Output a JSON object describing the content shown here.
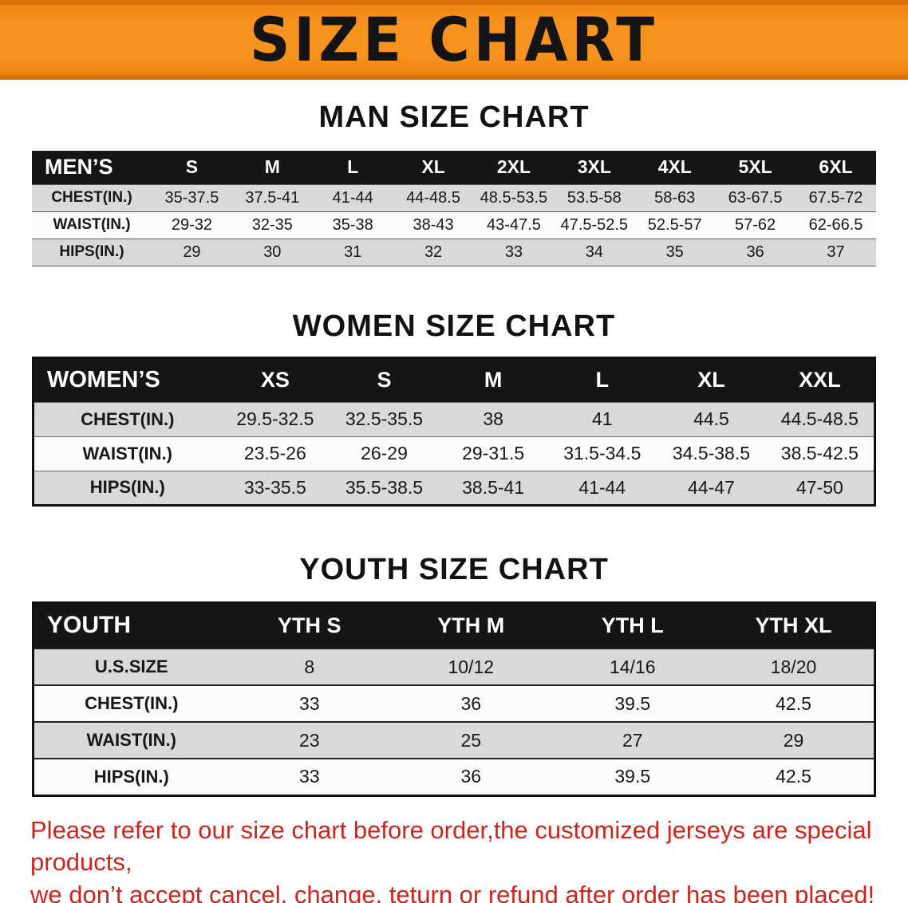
{
  "banner": {
    "title": "SIZE CHART"
  },
  "colors": {
    "banner_orange": "#f6921e",
    "header_black": "#151515",
    "row_gray": "#d9d9d9",
    "row_white": "#fbfbfb",
    "footer_red": "#cf231c"
  },
  "sections": [
    {
      "id": "men",
      "heading": "MAN SIZE CHART",
      "header_label": "MEN’S",
      "columns": [
        "S",
        "M",
        "L",
        "XL",
        "2XL",
        "3XL",
        "4XL",
        "5XL",
        "6XL"
      ],
      "rows": [
        {
          "label": "CHEST(IN.)",
          "values": [
            "35-37.5",
            "37.5-41",
            "41-44",
            "44-48.5",
            "48.5-53.5",
            "53.5-58",
            "58-63",
            "63-67.5",
            "67.5-72"
          ]
        },
        {
          "label": "WAIST(IN.)",
          "values": [
            "29-32",
            "32-35",
            "35-38",
            "38-43",
            "43-47.5",
            "47.5-52.5",
            "52.5-57",
            "57-62",
            "62-66.5"
          ]
        },
        {
          "label": "HIPS(IN.)",
          "values": [
            "29",
            "30",
            "31",
            "32",
            "33",
            "34",
            "35",
            "36",
            "37"
          ]
        }
      ]
    },
    {
      "id": "women",
      "heading": "WOMEN SIZE CHART",
      "header_label": "WOMEN’S",
      "columns": [
        "XS",
        "S",
        "M",
        "L",
        "XL",
        "XXL"
      ],
      "rows": [
        {
          "label": "CHEST(IN.)",
          "values": [
            "29.5-32.5",
            "32.5-35.5",
            "38",
            "41",
            "44.5",
            "44.5-48.5"
          ]
        },
        {
          "label": "WAIST(IN.)",
          "values": [
            "23.5-26",
            "26-29",
            "29-31.5",
            "31.5-34.5",
            "34.5-38.5",
            "38.5-42.5"
          ]
        },
        {
          "label": "HIPS(IN.)",
          "values": [
            "33-35.5",
            "35.5-38.5",
            "38.5-41",
            "41-44",
            "44-47",
            "47-50"
          ]
        }
      ]
    },
    {
      "id": "youth",
      "heading": "YOUTH SIZE CHART",
      "header_label": "YOUTH",
      "columns": [
        "YTH S",
        "YTH M",
        "YTH L",
        "YTH XL"
      ],
      "rows": [
        {
          "label": "U.S.SIZE",
          "values": [
            "8",
            "10/12",
            "14/16",
            "18/20"
          ]
        },
        {
          "label": "CHEST(IN.)",
          "values": [
            "33",
            "36",
            "39.5",
            "42.5"
          ]
        },
        {
          "label": "WAIST(IN.)",
          "values": [
            "23",
            "25",
            "27",
            "29"
          ]
        },
        {
          "label": "HIPS(IN.)",
          "values": [
            "33",
            "36",
            "39.5",
            "42.5"
          ]
        }
      ]
    }
  ],
  "footer": {
    "line1": "Please refer to our size chart before order,the customized jerseys are special products,",
    "line2": "we don’t accept cancel, change, teturn or refund after order has been placed!"
  }
}
